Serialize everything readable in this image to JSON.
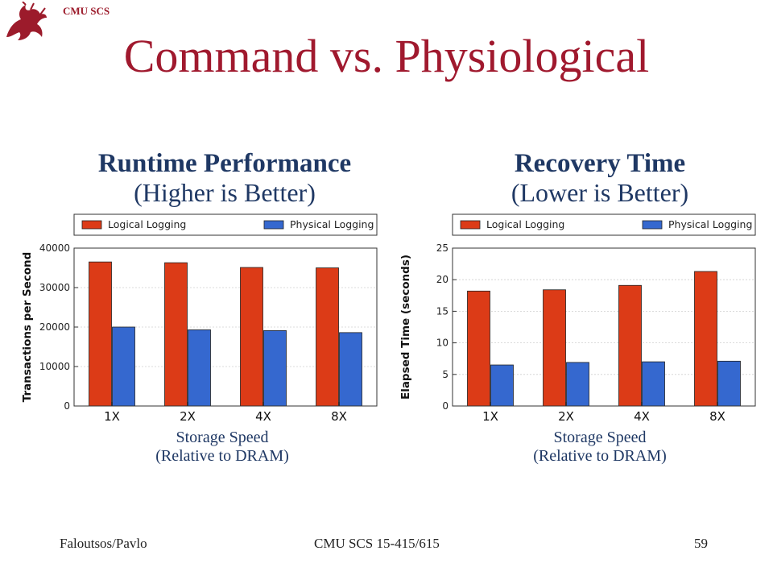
{
  "header": {
    "org_label": "CMU SCS",
    "logo_icon": "griffin-icon"
  },
  "title": "Command vs. Physiological",
  "colors": {
    "logical": "#dc3b17",
    "physical": "#3568cf",
    "title": "#a0192e",
    "subtitle": "#1f3864"
  },
  "panels": [
    {
      "title": "Runtime Performance",
      "subtitle": "(Higher is Better)",
      "xcaption_1": "Storage Speed",
      "xcaption_2": "(Relative to DRAM)"
    },
    {
      "title": "Recovery Time",
      "subtitle": "(Lower is Better)",
      "xcaption_1": "Storage Speed",
      "xcaption_2": "(Relative to DRAM)"
    }
  ],
  "chart_data": [
    {
      "type": "bar",
      "categories": [
        "1X",
        "2X",
        "4X",
        "8X"
      ],
      "series": [
        {
          "name": "Logical Logging",
          "values": [
            36500,
            36300,
            35100,
            35000
          ]
        },
        {
          "name": "Physical Logging",
          "values": [
            20000,
            19300,
            19100,
            18600
          ]
        }
      ],
      "ylabel": "Transactions per Second",
      "yticks": [
        0,
        10000,
        20000,
        30000,
        40000
      ],
      "ylim": [
        0,
        40000
      ],
      "grid": true,
      "legend": "top"
    },
    {
      "type": "bar",
      "categories": [
        "1X",
        "2X",
        "4X",
        "8X"
      ],
      "series": [
        {
          "name": "Logical Logging",
          "values": [
            18.2,
            18.4,
            19.1,
            21.3
          ]
        },
        {
          "name": "Physical Logging",
          "values": [
            6.5,
            6.9,
            7.0,
            7.1
          ]
        }
      ],
      "ylabel": "Elapsed Time (seconds)",
      "yticks": [
        0,
        5,
        10,
        15,
        20,
        25
      ],
      "ylim": [
        0,
        25
      ],
      "grid": true,
      "legend": "top"
    }
  ],
  "footer": {
    "left": "Faloutsos/Pavlo",
    "center": "CMU SCS 15-415/615",
    "page": "59"
  }
}
